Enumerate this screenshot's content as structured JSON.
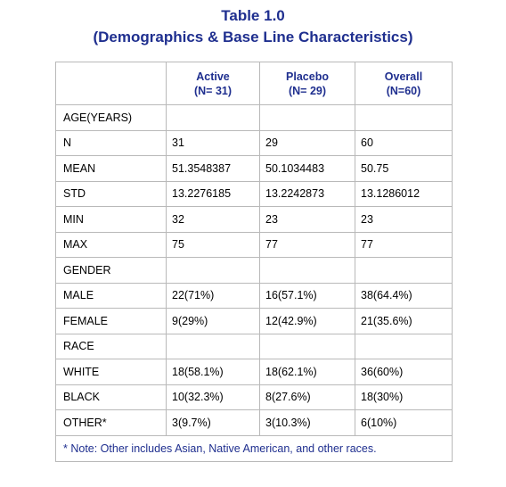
{
  "title": {
    "line1": "Table 1.0",
    "line2": "(Demographics & Base Line Characteristics)"
  },
  "header": {
    "corner": "",
    "columns": [
      {
        "name": "Active",
        "n": "(N= 31)"
      },
      {
        "name": "Placebo",
        "n": "(N= 29)"
      },
      {
        "name": "Overall",
        "n": "(N=60)"
      }
    ]
  },
  "rows": [
    {
      "label": "AGE(YEARS)",
      "values": [
        "",
        "",
        ""
      ]
    },
    {
      "label": "N",
      "values": [
        "31",
        "29",
        "60"
      ]
    },
    {
      "label": "MEAN",
      "values": [
        "51.3548387",
        "50.1034483",
        "50.75"
      ]
    },
    {
      "label": "STD",
      "values": [
        "13.2276185",
        "13.2242873",
        "13.1286012"
      ]
    },
    {
      "label": "MIN",
      "values": [
        "32",
        "23",
        "23"
      ]
    },
    {
      "label": "MAX",
      "values": [
        "75",
        "77",
        "77"
      ]
    },
    {
      "label": "GENDER",
      "values": [
        "",
        "",
        ""
      ]
    },
    {
      "label": "MALE",
      "values": [
        "22(71%)",
        "16(57.1%)",
        "38(64.4%)"
      ]
    },
    {
      "label": "FEMALE",
      "values": [
        "9(29%)",
        "12(42.9%)",
        "21(35.6%)"
      ]
    },
    {
      "label": "RACE",
      "values": [
        "",
        "",
        ""
      ]
    },
    {
      "label": "WHITE",
      "values": [
        "18(58.1%)",
        "18(62.1%)",
        "36(60%)"
      ]
    },
    {
      "label": "BLACK",
      "values": [
        "10(32.3%)",
        "8(27.6%)",
        "18(30%)"
      ]
    },
    {
      "label": "OTHER*",
      "values": [
        "3(9.7%)",
        "3(10.3%)",
        "6(10%)"
      ]
    }
  ],
  "footnote": "* Note: Other includes Asian, Native American, and other races.",
  "colors": {
    "title": "#1f2f8f",
    "border": "#b9b9b9",
    "text": "#000000"
  }
}
